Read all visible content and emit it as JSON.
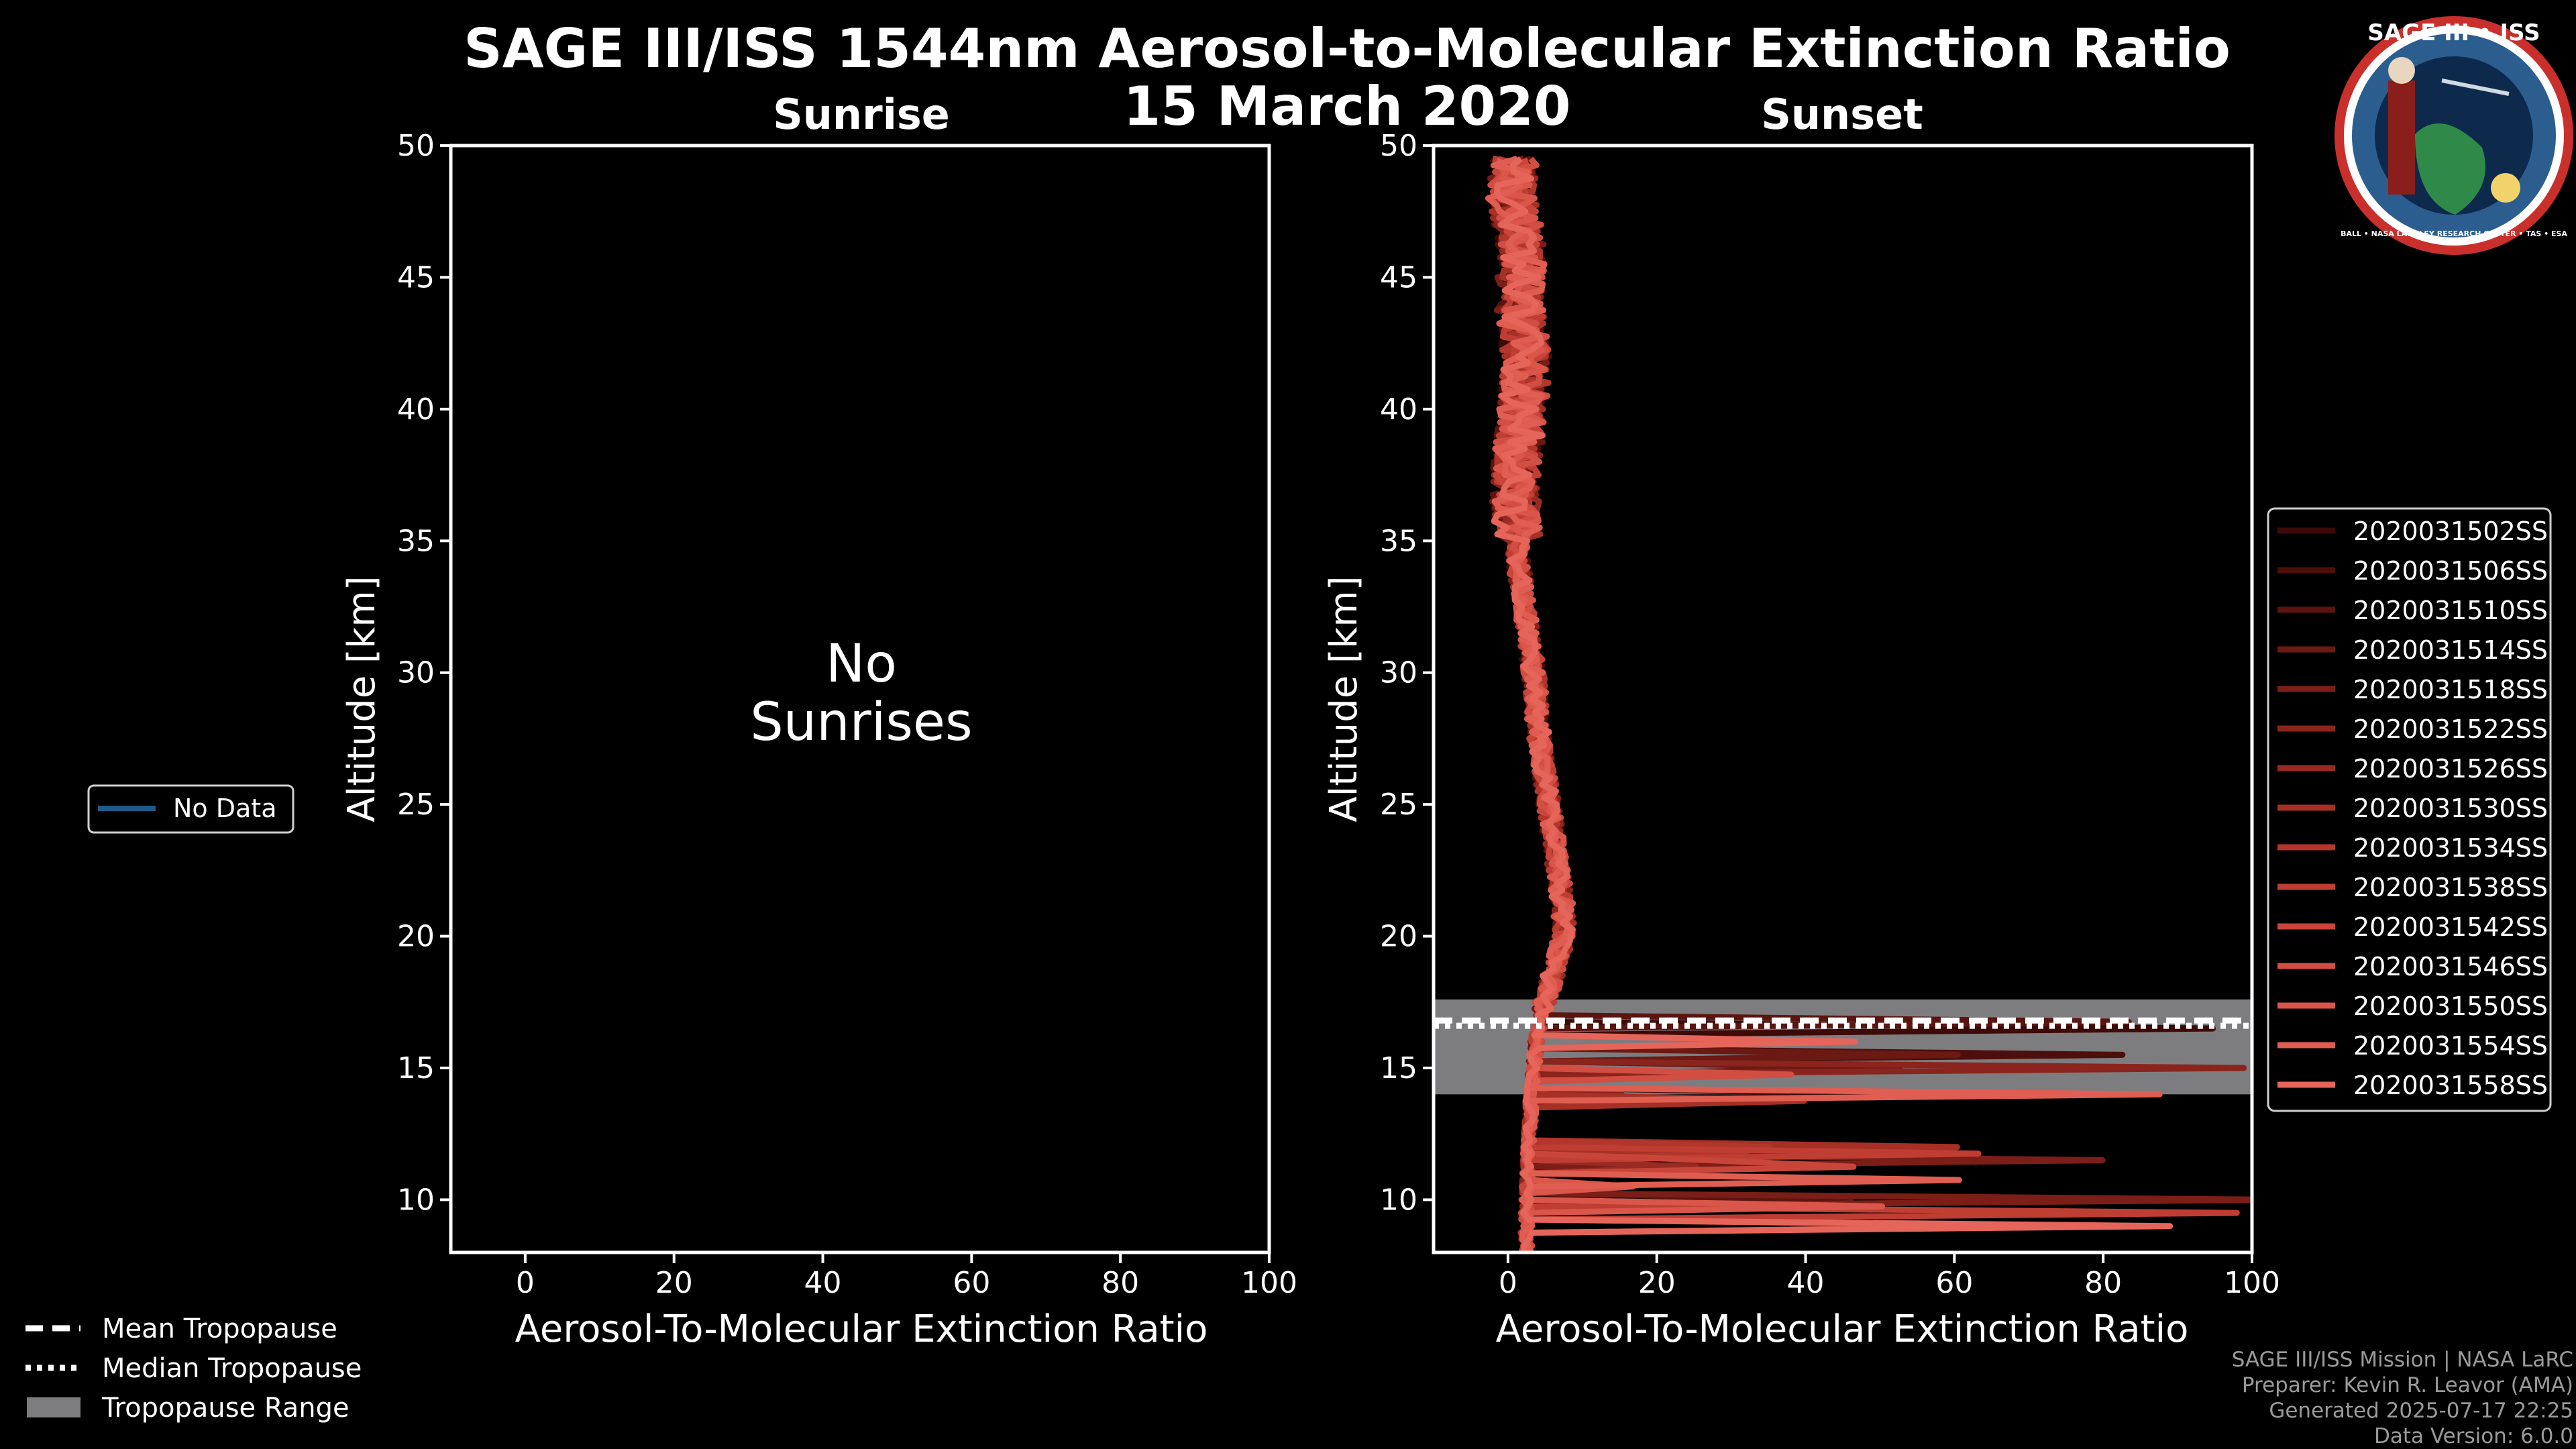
{
  "title_line1": "SAGE III/ISS 1544nm Aerosol-to-Molecular Extinction Ratio",
  "title_line2": "15 March 2020",
  "logo": {
    "text": "SAGE III • ISS",
    "ring_text": "BALL • NASA LANGLEY RESEARCH CENTER • TAS • ESA"
  },
  "left_legend": {
    "label": "No Data",
    "color": "#1f5a8a"
  },
  "tropopause_legend": [
    {
      "label": "Mean Tropopause",
      "style": "dashed"
    },
    {
      "label": "Median Tropopause",
      "style": "dotted"
    },
    {
      "label": "Tropopause Range",
      "style": "range"
    }
  ],
  "footer": [
    "SAGE III/ISS Mission | NASA LaRC",
    "Preparer: Kevin R. Leavor (AMA)",
    "Generated 2025-07-17 22:25",
    "Data Version: 6.0.0"
  ],
  "chart_data": [
    {
      "type": "line",
      "title": "Sunrise",
      "xlabel": "Aerosol-To-Molecular Extinction Ratio",
      "ylabel": "Altitude [km]",
      "xlim": [
        -10,
        100
      ],
      "ylim": [
        8,
        50
      ],
      "xticks": [
        0,
        20,
        40,
        60,
        80,
        100
      ],
      "yticks": [
        10,
        15,
        20,
        25,
        30,
        35,
        40,
        45,
        50
      ],
      "annotation": [
        "No",
        "Sunrises"
      ],
      "series": []
    },
    {
      "type": "line",
      "title": "Sunset",
      "xlabel": "Aerosol-To-Molecular Extinction Ratio",
      "ylabel": "Altitude [km]",
      "xlim": [
        -10,
        100
      ],
      "ylim": [
        8,
        50
      ],
      "xticks": [
        0,
        20,
        40,
        60,
        80,
        100
      ],
      "yticks": [
        10,
        15,
        20,
        25,
        30,
        35,
        40,
        45,
        50
      ],
      "tropopause": {
        "mean": 16.8,
        "median": 16.6,
        "range": [
          14.0,
          17.6
        ]
      },
      "profile_shape": {
        "altitude": [
          8,
          9,
          10,
          11,
          12,
          13,
          14,
          15,
          16,
          17,
          18,
          19,
          20,
          21,
          22,
          23,
          24,
          25,
          26,
          27,
          28,
          29,
          30,
          32,
          34,
          36,
          38,
          40,
          42,
          44,
          46,
          48,
          49.5
        ],
        "ratio": [
          2.5,
          2.5,
          2.6,
          2.7,
          2.8,
          3.0,
          3.2,
          3.5,
          3.8,
          4.5,
          5.5,
          6.5,
          7.5,
          7.5,
          7.0,
          6.5,
          6.0,
          5.5,
          5.0,
          4.5,
          4.0,
          3.8,
          3.5,
          2.5,
          1.5,
          1.0,
          1.2,
          2.0,
          2.5,
          1.5,
          2.0,
          0.5,
          1.0
        ]
      },
      "series": [
        {
          "name": "2020031502SS",
          "color": "#3d0a07"
        },
        {
          "name": "2020031506SS",
          "color": "#4d0f0b"
        },
        {
          "name": "2020031510SS",
          "color": "#5c140f"
        },
        {
          "name": "2020031514SS",
          "color": "#6b1913"
        },
        {
          "name": "2020031518SS",
          "color": "#7b1e17"
        },
        {
          "name": "2020031522SS",
          "color": "#8a241c"
        },
        {
          "name": "2020031526SS",
          "color": "#982a21"
        },
        {
          "name": "2020031530SS",
          "color": "#a63026"
        },
        {
          "name": "2020031534SS",
          "color": "#b3362c"
        },
        {
          "name": "2020031538SS",
          "color": "#bf3d33"
        },
        {
          "name": "2020031542SS",
          "color": "#c9453a"
        },
        {
          "name": "2020031546SS",
          "color": "#d24d42"
        },
        {
          "name": "2020031550SS",
          "color": "#da554a"
        },
        {
          "name": "2020031554SS",
          "color": "#e05d52"
        },
        {
          "name": "2020031558SS",
          "color": "#e6655a"
        }
      ]
    }
  ]
}
